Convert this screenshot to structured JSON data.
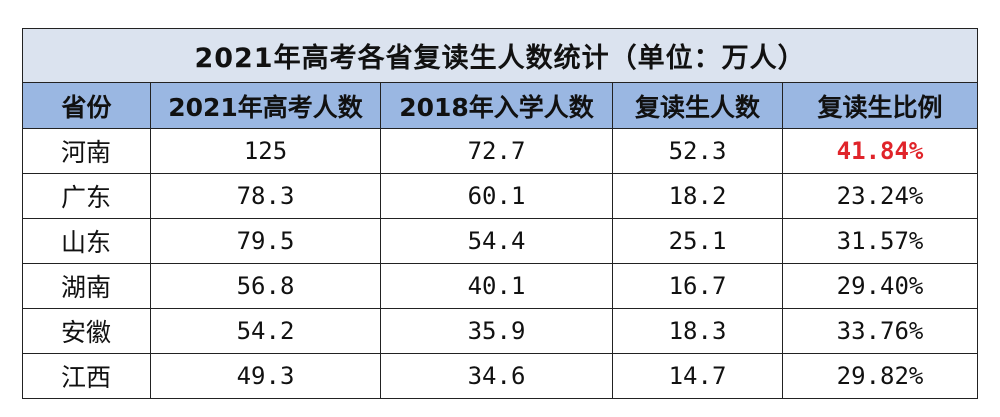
{
  "table": {
    "title": "2021年高考各省复读生人数统计（单位：万人）",
    "header": [
      "省份",
      "2021年高考人数",
      "2018年入学人数",
      "复读生人数",
      "复读生比例"
    ],
    "rows": [
      [
        "河南",
        "125",
        "72.7",
        "52.3",
        "41.84%"
      ],
      [
        "广东",
        "78.3",
        "60.1",
        "18.2",
        "23.24%"
      ],
      [
        "山东",
        "79.5",
        "54.4",
        "25.1",
        "31.57%"
      ],
      [
        "湖南",
        "56.8",
        "40.1",
        "16.7",
        "29.40%"
      ],
      [
        "安徽",
        "54.2",
        "35.9",
        "18.3",
        "33.76%"
      ],
      [
        "江西",
        "49.3",
        "34.6",
        "14.7",
        "29.82%"
      ]
    ]
  }
}
